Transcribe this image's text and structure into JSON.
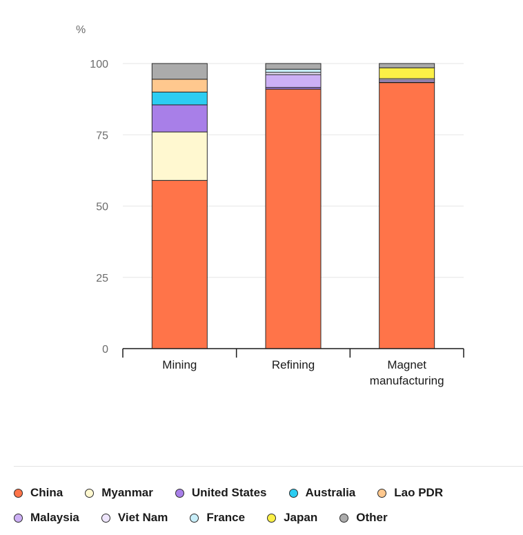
{
  "chart_data": {
    "type": "bar",
    "stacked": true,
    "unit_label": "%",
    "categories": [
      {
        "lines": [
          "Mining"
        ]
      },
      {
        "lines": [
          "Refining"
        ]
      },
      {
        "lines": [
          "Magnet",
          "manufacturing"
        ]
      }
    ],
    "ylim": [
      0,
      100
    ],
    "yticks": [
      0,
      25,
      50,
      75,
      100
    ],
    "grid": true,
    "legend_position": "bottom",
    "series": [
      {
        "name": "China",
        "color": "#ff7449",
        "values": [
          59,
          91,
          93.3
        ]
      },
      {
        "name": "Myanmar",
        "color": "#fff8d0",
        "values": [
          17,
          0,
          0
        ]
      },
      {
        "name": "United States",
        "color": "#a87fe8",
        "values": [
          9.5,
          0.6,
          0.2
        ]
      },
      {
        "name": "Australia",
        "color": "#2ccdf2",
        "values": [
          4.5,
          0,
          0
        ]
      },
      {
        "name": "Lao PDR",
        "color": "#ffc88e",
        "values": [
          4.5,
          0,
          0
        ]
      },
      {
        "name": "Malaysia",
        "color": "#cdb0f5",
        "values": [
          0,
          4.5,
          0.7
        ]
      },
      {
        "name": "Viet Nam",
        "color": "#eee5fc",
        "values": [
          0,
          0.8,
          0.5
        ]
      },
      {
        "name": "France",
        "color": "#c8eef9",
        "values": [
          0,
          1.1,
          0
        ]
      },
      {
        "name": "Japan",
        "color": "#fbf047",
        "values": [
          0,
          0,
          3.8
        ]
      },
      {
        "name": "Other",
        "color": "#ababab",
        "values": [
          5.5,
          2,
          1.5
        ]
      }
    ]
  }
}
